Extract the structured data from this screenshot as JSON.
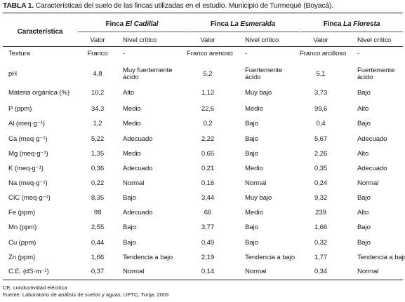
{
  "caption": {
    "label": "TABLA 1.",
    "text": "Características del suelo de las fincas utilizadas en el estudio. Municipio de Turmequé (Boyacá)."
  },
  "header": {
    "characteristic": "Característica",
    "farm_prefix": "Finca",
    "farms": [
      "El Cadillal",
      "La Esmeralda",
      "La Floresta"
    ],
    "value_label": "Valor",
    "level_label": "Nivel crítico"
  },
  "rows": [
    {
      "name": "Textura",
      "v1": "Franco",
      "n1": "-",
      "v2": "Franco arenoso",
      "n2": "-",
      "v3": "Franco arcilloso",
      "n3": "-"
    },
    {
      "name": "pH",
      "v1": "4,8",
      "n1": [
        "Muy fuertemente",
        "ácido"
      ],
      "v2": "5,2",
      "n2": [
        "Fuertemente",
        "ácido"
      ],
      "v3": "5,1",
      "n3": [
        "Fuertemente",
        "ácido"
      ]
    },
    {
      "name": "Materia orgánica (%)",
      "v1": "10,2",
      "n1": "Alto",
      "v2": "1,12",
      "n2": "Muy bajo",
      "v3": "3,73",
      "n3": "Bajo"
    },
    {
      "name": "P (ppm)",
      "v1": "34,3",
      "n1": "Medio",
      "v2": "22,6",
      "n2": "Medio",
      "v3": "99,6",
      "n3": "Alto"
    },
    {
      "name": "Al (meq·g⁻¹)",
      "v1": "1,2",
      "n1": "Medio",
      "v2": "0,2",
      "n2": "Bajo",
      "v3": "0,4",
      "n3": "Bajo"
    },
    {
      "name": "Ca (meq·g⁻¹)",
      "v1": "5,22",
      "n1": "Adecuado",
      "v2": "2,22",
      "n2": "Bajo",
      "v3": "5,67",
      "n3": "Adecuado"
    },
    {
      "name": "Mg (meq·g⁻¹)",
      "v1": "1,35",
      "n1": "Medio",
      "v2": "0,65",
      "n2": "Bajo",
      "v3": "2,26",
      "n3": "Alto"
    },
    {
      "name": "K (meq·g⁻¹)",
      "v1": "0,36",
      "n1": "Adecuado",
      "v2": "0,21",
      "n2": "Medio",
      "v3": "0,35",
      "n3": "Adecuado"
    },
    {
      "name": "Na (meq·g⁻¹)",
      "v1": "0,22",
      "n1": "Normal",
      "v2": "0,16",
      "n2": "Normal",
      "v3": "0,24",
      "n3": "Normal"
    },
    {
      "name": "CIC (meq·g⁻¹)",
      "v1": "8,35",
      "n1": "Bajo",
      "v2": "3,44",
      "n2": "Muy bajo",
      "v3": "9,32",
      "n3": "Bajo"
    },
    {
      "name": "Fe (ppm)",
      "v1": "98",
      "n1": "Adecuado",
      "v2": "66",
      "n2": "Medio",
      "v3": "239",
      "n3": "Alto"
    },
    {
      "name": "Mn (ppm)",
      "v1": "2,55",
      "n1": "Bajo",
      "v2": "3,77",
      "n2": "Bajo",
      "v3": "1,66",
      "n3": "Bajo"
    },
    {
      "name": "Cu (ppm)",
      "v1": "0,44",
      "n1": "Bajo",
      "v2": "0,49",
      "n2": "Bajo",
      "v3": "0,32",
      "n3": "Bajo"
    },
    {
      "name": "Zn (ppm)",
      "v1": "1,66",
      "n1": "Tendencia a bajo",
      "v2": "2,19",
      "n2": "Tendencia a bajo",
      "v3": "1,77",
      "n3": "Tendencia a bajo"
    },
    {
      "name": "C.E. (dS·m⁻¹)",
      "v1": "0,37",
      "n1": "Normal",
      "v2": "0,14",
      "n2": "Normal",
      "v3": "0,34",
      "n3": "Normal"
    }
  ],
  "notes": [
    "CE, conductividad eléctrica",
    "Fuente: Laboratorio de análisis de suelos y aguas, UPTC, Tunja. 2003"
  ]
}
